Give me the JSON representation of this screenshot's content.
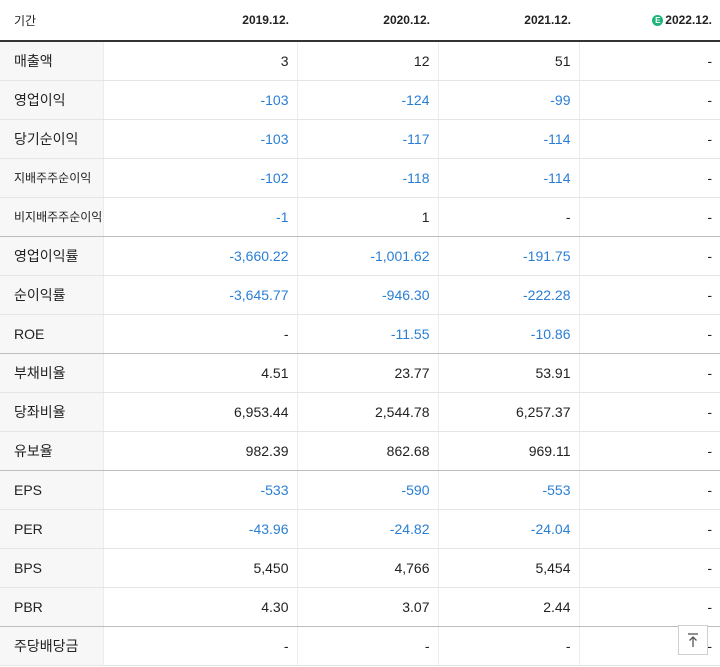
{
  "header": {
    "period_label": "기간",
    "columns": [
      "2019.12.",
      "2020.12.",
      "2021.12.",
      "2022.12."
    ],
    "estimate_badge": "E"
  },
  "rows": [
    {
      "label": "매출액",
      "values": [
        "3",
        "12",
        "51",
        "-"
      ]
    },
    {
      "label": "영업이익",
      "values": [
        "-103",
        "-124",
        "-99",
        "-"
      ]
    },
    {
      "label": "당기순이익",
      "values": [
        "-103",
        "-117",
        "-114",
        "-"
      ]
    },
    {
      "label": "지배주주순이익",
      "values": [
        "-102",
        "-118",
        "-114",
        "-"
      ]
    },
    {
      "label": "비지배주주순이익",
      "values": [
        "-1",
        "1",
        "-",
        "-"
      ]
    },
    {
      "label": "영업이익률",
      "values": [
        "-3,660.22",
        "-1,001.62",
        "-191.75",
        "-"
      ]
    },
    {
      "label": "순이익률",
      "values": [
        "-3,645.77",
        "-946.30",
        "-222.28",
        "-"
      ]
    },
    {
      "label": "ROE",
      "values": [
        "-",
        "-11.55",
        "-10.86",
        "-"
      ]
    },
    {
      "label": "부채비율",
      "values": [
        "4.51",
        "23.77",
        "53.91",
        "-"
      ]
    },
    {
      "label": "당좌비율",
      "values": [
        "6,953.44",
        "2,544.78",
        "6,257.37",
        "-"
      ]
    },
    {
      "label": "유보율",
      "values": [
        "982.39",
        "862.68",
        "969.11",
        "-"
      ]
    },
    {
      "label": "EPS",
      "values": [
        "-533",
        "-590",
        "-553",
        "-"
      ]
    },
    {
      "label": "PER",
      "values": [
        "-43.96",
        "-24.82",
        "-24.04",
        "-"
      ]
    },
    {
      "label": "BPS",
      "values": [
        "5,450",
        "4,766",
        "5,454",
        "-"
      ]
    },
    {
      "label": "PBR",
      "values": [
        "4.30",
        "3.07",
        "2.44",
        "-"
      ]
    },
    {
      "label": "주당배당금",
      "values": [
        "-",
        "-",
        "-",
        "-"
      ]
    }
  ],
  "scroll_top_icon": "arrow-up-to-line-icon",
  "colors": {
    "negative": "#2a7fd4",
    "estimate_badge": "#1fb37a",
    "label_bg": "#f7f7f7"
  }
}
